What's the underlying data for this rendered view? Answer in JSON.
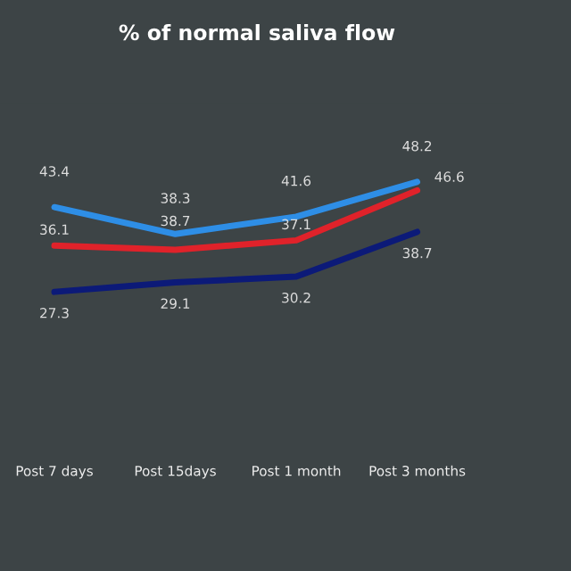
{
  "chart_data": {
    "type": "line",
    "title": "% of normal saliva flow",
    "categories": [
      "Post 7 days",
      "Post 15days",
      "Post 1 month",
      "Post 3 months"
    ],
    "series": [
      {
        "color": "#0c1a78",
        "values": [
          27.3,
          29.1,
          30.2,
          38.7
        ],
        "value_labels": [
          "27.3",
          "29.1",
          "30.2",
          "38.7"
        ]
      },
      {
        "color": "#2e8ee6",
        "values": [
          43.4,
          38.3,
          41.6,
          48.2
        ],
        "value_labels": [
          "43.4",
          "38.3",
          "41.6",
          "48.2"
        ]
      },
      {
        "color": "#e0222a",
        "values": [
          36.1,
          35.3,
          37.1,
          46.6
        ],
        "value_labels": [
          "36.1",
          null,
          "37.1",
          "46.6"
        ]
      }
    ],
    "annotations": [
      {
        "text": "38.7",
        "x": "Post 15days",
        "y": 38.7
      }
    ],
    "grid": false
  }
}
